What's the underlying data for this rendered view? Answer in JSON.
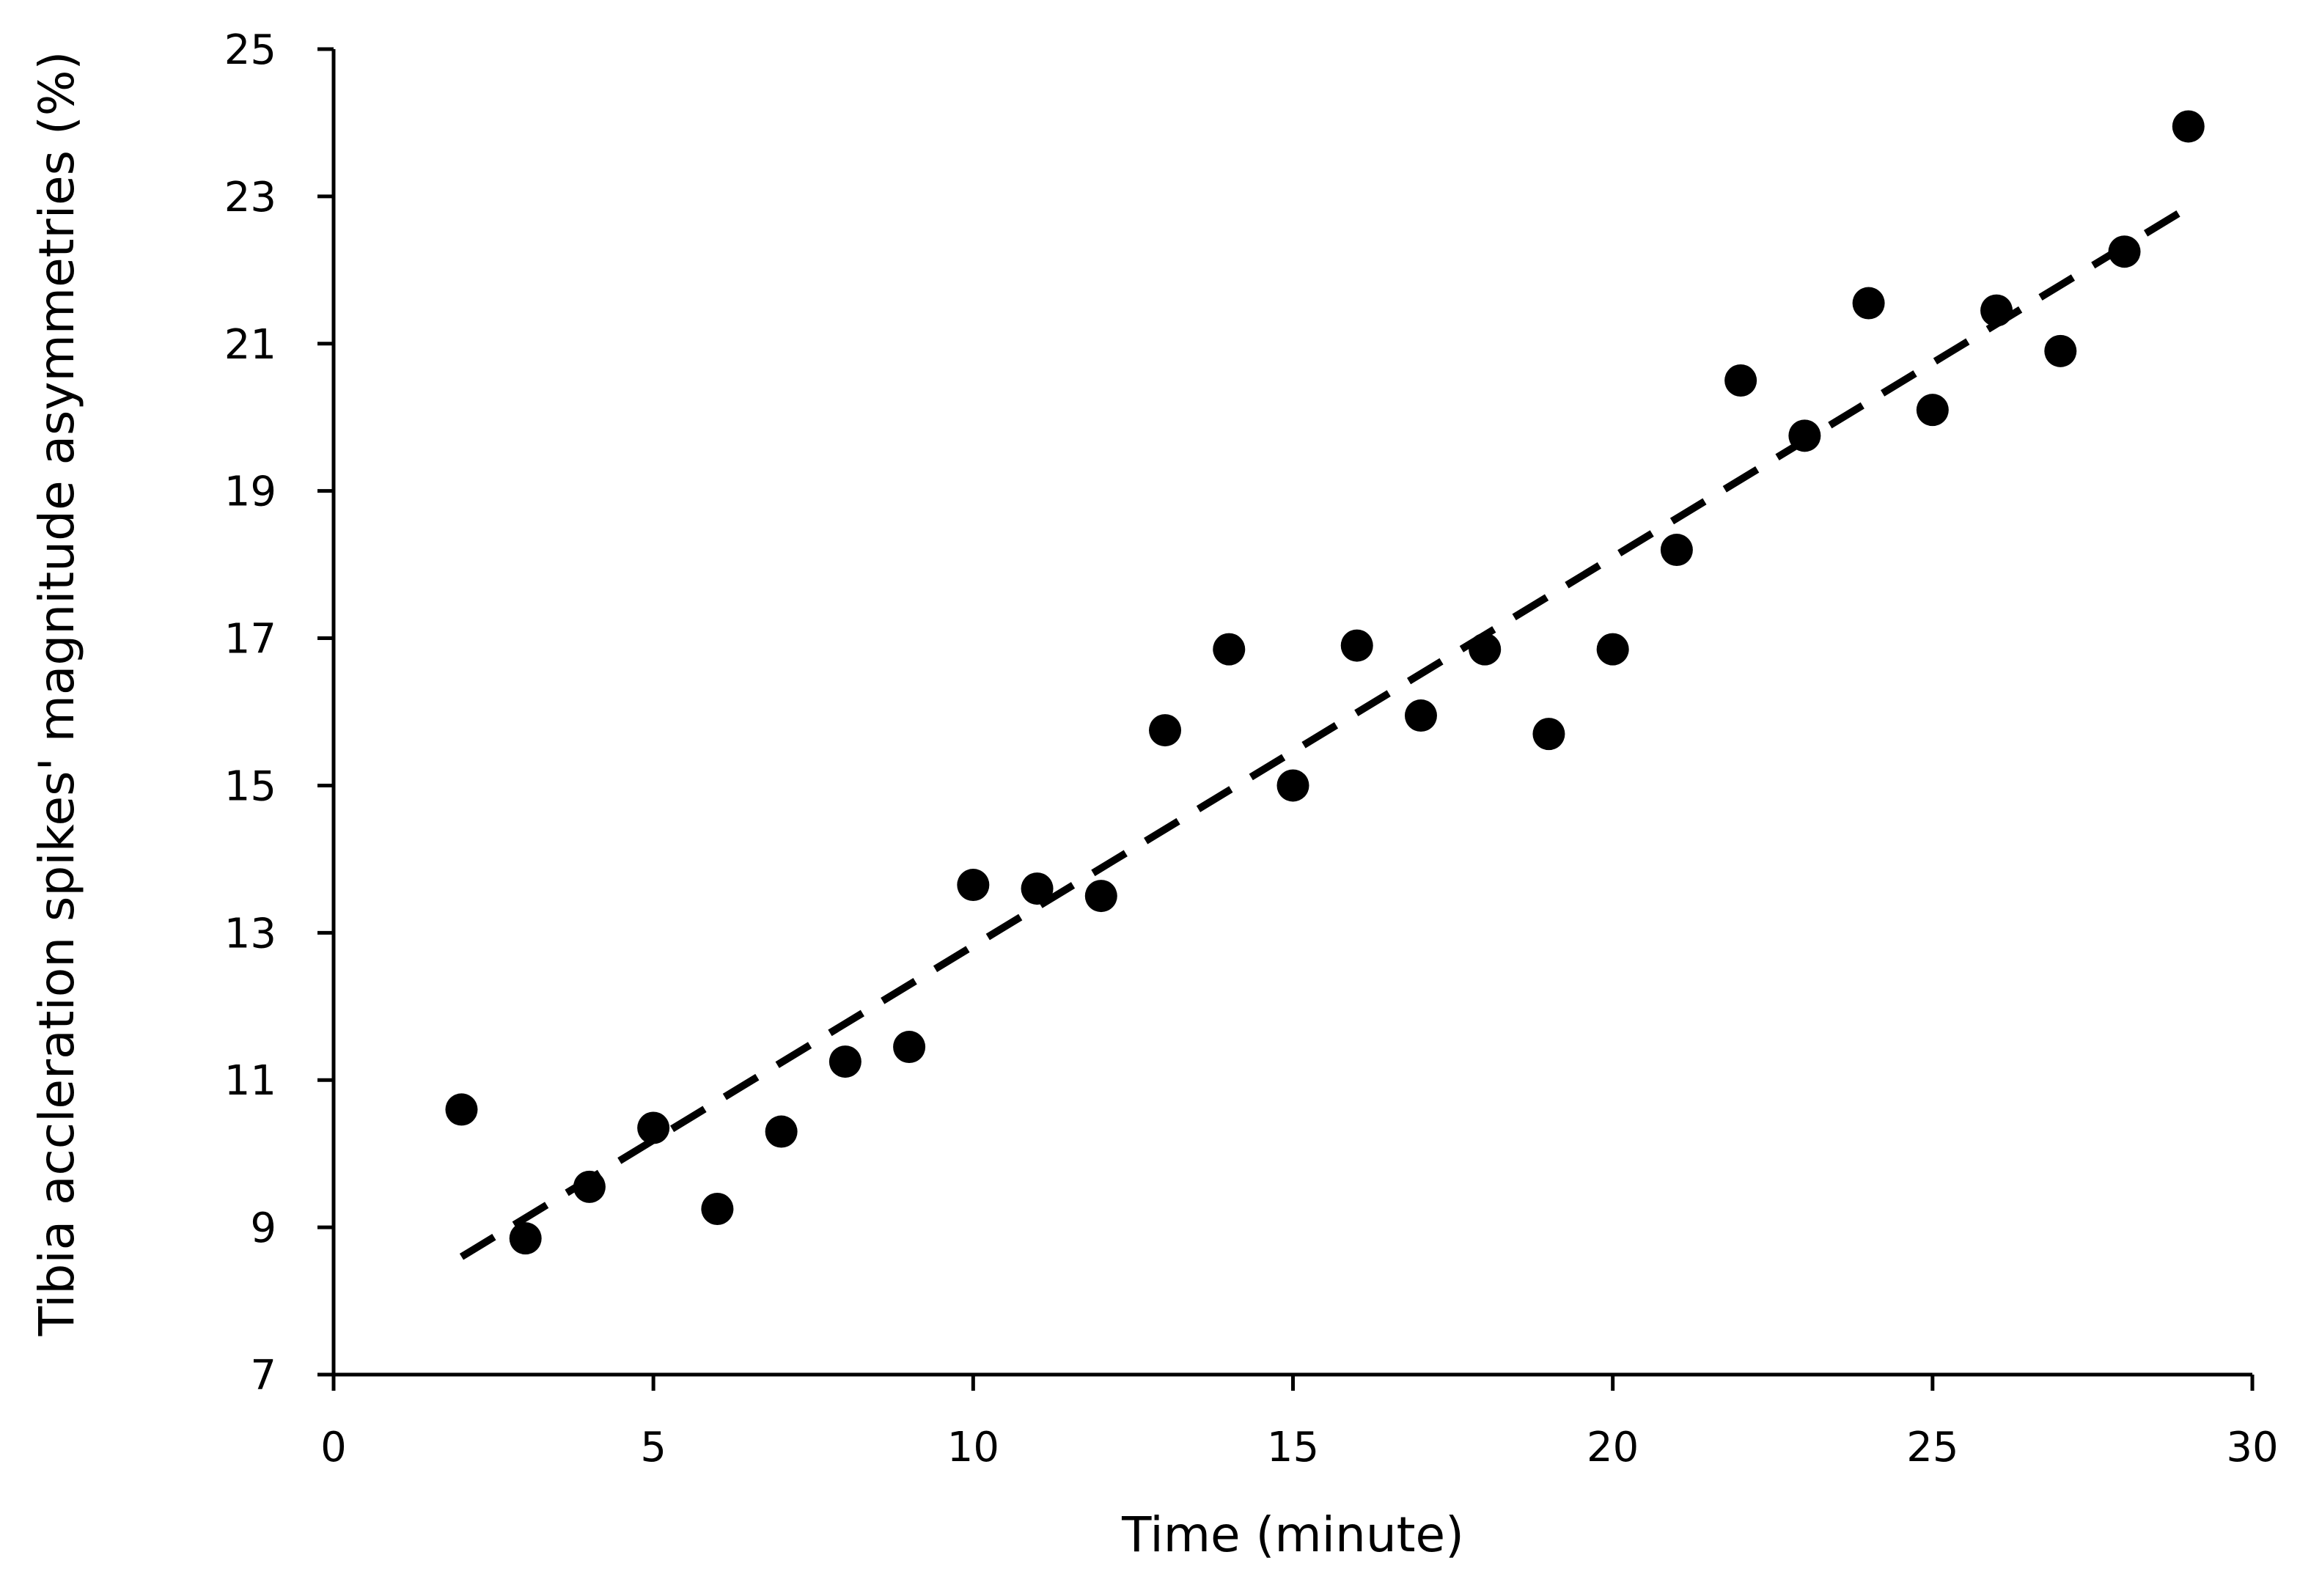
{
  "chart_data": {
    "type": "scatter",
    "title": "",
    "xlabel": "Time (minute)",
    "ylabel": "Tibia accleration spikes' magnitude asymmetries  (%)",
    "xlim": [
      0,
      30
    ],
    "ylim": [
      7,
      25
    ],
    "x_ticks": [
      "0",
      "5",
      "10",
      "15",
      "20",
      "25",
      "30"
    ],
    "y_ticks": [
      "7",
      "9",
      "11",
      "13",
      "15",
      "17",
      "19",
      "21",
      "23",
      "25"
    ],
    "grid": false,
    "legend": "none",
    "series": [
      {
        "marker": "filled-circle",
        "color": "#000000",
        "points": [
          {
            "x": 2,
            "y": 10.6
          },
          {
            "x": 3,
            "y": 8.85
          },
          {
            "x": 4,
            "y": 9.55
          },
          {
            "x": 5,
            "y": 10.35
          },
          {
            "x": 6,
            "y": 9.25
          },
          {
            "x": 7,
            "y": 10.3
          },
          {
            "x": 8,
            "y": 11.25
          },
          {
            "x": 9,
            "y": 11.45
          },
          {
            "x": 10,
            "y": 13.65
          },
          {
            "x": 11,
            "y": 13.6
          },
          {
            "x": 12,
            "y": 13.5
          },
          {
            "x": 13,
            "y": 15.75
          },
          {
            "x": 14,
            "y": 16.85
          },
          {
            "x": 15,
            "y": 15.0
          },
          {
            "x": 16,
            "y": 16.9
          },
          {
            "x": 17,
            "y": 15.95
          },
          {
            "x": 18,
            "y": 16.85
          },
          {
            "x": 19,
            "y": 15.7
          },
          {
            "x": 20,
            "y": 16.85
          },
          {
            "x": 21,
            "y": 18.2
          },
          {
            "x": 22,
            "y": 20.5
          },
          {
            "x": 23,
            "y": 19.75
          },
          {
            "x": 24,
            "y": 21.55
          },
          {
            "x": 25,
            "y": 20.1
          },
          {
            "x": 26,
            "y": 21.45
          },
          {
            "x": 27,
            "y": 20.9
          },
          {
            "x": 28,
            "y": 22.25
          },
          {
            "x": 29,
            "y": 23.95
          }
        ]
      }
    ],
    "trendline": {
      "type": "linear",
      "style": "dashed",
      "color": "#000000",
      "from": {
        "x": 2,
        "y": 8.6
      },
      "to": {
        "x": 29,
        "y": 22.85
      }
    }
  }
}
